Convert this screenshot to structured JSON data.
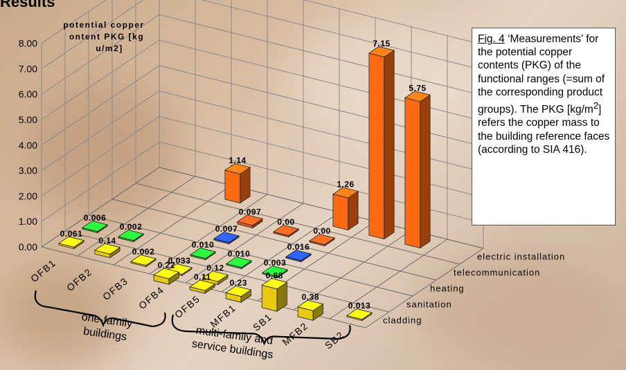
{
  "page": {
    "title": "Results",
    "caption": {
      "figref": "Fig. 4",
      "text_before_sup": " ‘Measurements’ for the potential copper contents (PKG) of the functional ranges (=sum of the corresponding product groups). The PKG [kg/m",
      "sup": "2",
      "text_after_sup": "] refers the copper mass to the building reference faces (according to SIA 416)."
    },
    "group_labels": [
      {
        "line1": "one-family",
        "line2": "buildings"
      },
      {
        "line1": "multi-family and",
        "line2": "service buildings"
      }
    ]
  },
  "colors": {
    "cladding": "#ff6a13",
    "sanitation": "#e8581b",
    "heating": "#2850d8",
    "telecommunication": "#22c832",
    "electric installation": "#e8c810",
    "background": "#d8bba0"
  },
  "chart_data": {
    "type": "bar",
    "subtype": "3d-bar",
    "title": "",
    "ylabel": "potential copper content PKG [kg Cu/m2]",
    "ylim": [
      0,
      8
    ],
    "yticks": [
      "0.00",
      "1.00",
      "2.00",
      "3.00",
      "4.00",
      "5.00",
      "6.00",
      "7.00",
      "8.00"
    ],
    "categories": [
      "OFB1",
      "OFB2",
      "OFB3",
      "OFB4",
      "OFB5",
      "MFB1",
      "SB1",
      "MFB2",
      "SB2"
    ],
    "series": [
      {
        "name": "cladding",
        "values": [
          null,
          null,
          1.14,
          null,
          null,
          1.26,
          7.15,
          5.75,
          null
        ],
        "labels": [
          "",
          "",
          "1.14",
          "",
          "",
          "1.26",
          "7.15",
          "5.75",
          ""
        ]
      },
      {
        "name": "sanitation",
        "values": [
          null,
          null,
          null,
          0.097,
          0.0,
          0.0,
          null,
          null,
          null
        ],
        "labels": [
          "",
          "",
          "",
          "0.097",
          "0.00",
          "0.00",
          "",
          "",
          ""
        ]
      },
      {
        "name": "heating",
        "values": [
          null,
          null,
          null,
          0.007,
          null,
          0.016,
          null,
          null,
          null
        ],
        "labels": [
          "",
          "",
          "",
          "0.007",
          "",
          "0.016",
          "",
          "",
          ""
        ]
      },
      {
        "name": "telecommunication",
        "values": [
          0.006,
          0.002,
          null,
          0.01,
          0.01,
          0.003,
          null,
          null,
          null
        ],
        "labels": [
          "0.006",
          "0.002",
          "",
          "0.010",
          "0.010",
          "0.003",
          "",
          "",
          ""
        ]
      },
      {
        "name": "electric installation",
        "values": [
          0.061,
          0.14,
          0.002,
          0.033,
          0.12,
          null,
          null,
          null,
          0.013
        ],
        "labels": [
          "0.061",
          "0.14",
          "0.002",
          "0.033",
          "0.12",
          "",
          "",
          "",
          "0.013"
        ]
      },
      {
        "name": "electric installation (front)",
        "values": [
          null,
          null,
          null,
          0.22,
          0.11,
          0.23,
          0.88,
          0.38,
          null
        ],
        "labels": [
          "",
          "",
          "",
          "0.22",
          "0.11",
          "0.23",
          "0.88",
          "0.38",
          ""
        ]
      }
    ],
    "depth_labels": [
      "cladding",
      "sanitation",
      "heating",
      "telecommunication",
      "electric installation"
    ],
    "grid": true,
    "legend": "none"
  }
}
